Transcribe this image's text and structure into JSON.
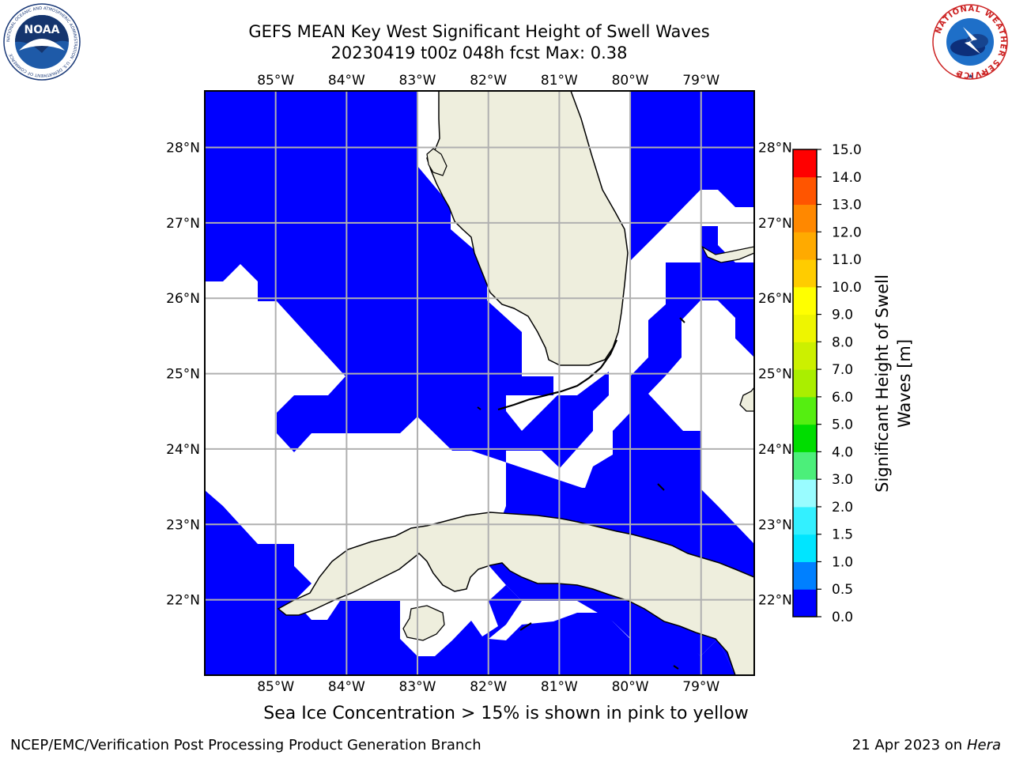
{
  "title": {
    "line1": "GEFS MEAN Key West Significant Height of Swell Waves",
    "line2": "20230419 t00z 048h fcst   Max: 0.38"
  },
  "map": {
    "lon_labels": [
      "85°W",
      "84°W",
      "83°W",
      "82°W",
      "81°W",
      "80°W",
      "79°W"
    ],
    "lat_labels": [
      "28°N",
      "27°N",
      "26°N",
      "25°N",
      "24°N",
      "23°N",
      "22°N"
    ],
    "lon_range": [
      -86.0,
      -78.25
    ],
    "lat_range": [
      21.0,
      28.75
    ],
    "land_color": "#eeeedd",
    "ocean_fill_color": "#0000ff",
    "grid_color": "#b0b0b0"
  },
  "colorbar": {
    "label": "Significant Height of Swell Waves [m]",
    "label_line1": "Significant Height of Swell",
    "label_line2": "Waves [m]",
    "ticks": [
      "15.0",
      "14.0",
      "13.0",
      "12.0",
      "11.0",
      "10.0",
      "9.0",
      "8.0",
      "7.0",
      "6.0",
      "5.0",
      "4.0",
      "3.0",
      "2.0",
      "1.5",
      "1.0",
      "0.5",
      "0.0"
    ],
    "bins": [
      {
        "from": 0.0,
        "to": 0.5,
        "color": "#0000ff"
      },
      {
        "from": 0.5,
        "to": 1.0,
        "color": "#0080ff"
      },
      {
        "from": 1.0,
        "to": 1.5,
        "color": "#00e5ff"
      },
      {
        "from": 1.5,
        "to": 2.0,
        "color": "#33f0ff"
      },
      {
        "from": 2.0,
        "to": 3.0,
        "color": "#99fcff"
      },
      {
        "from": 3.0,
        "to": 4.0,
        "color": "#4cef7a"
      },
      {
        "from": 4.0,
        "to": 5.0,
        "color": "#00dd00"
      },
      {
        "from": 5.0,
        "to": 6.0,
        "color": "#55ee11"
      },
      {
        "from": 6.0,
        "to": 7.0,
        "color": "#aaee00"
      },
      {
        "from": 7.0,
        "to": 8.0,
        "color": "#ccf000"
      },
      {
        "from": 8.0,
        "to": 9.0,
        "color": "#eef500"
      },
      {
        "from": 9.0,
        "to": 10.0,
        "color": "#ffff00"
      },
      {
        "from": 10.0,
        "to": 11.0,
        "color": "#ffcc00"
      },
      {
        "from": 11.0,
        "to": 12.0,
        "color": "#ffaa00"
      },
      {
        "from": 12.0,
        "to": 13.0,
        "color": "#ff8800"
      },
      {
        "from": 13.0,
        "to": 14.0,
        "color": "#ff5500"
      },
      {
        "from": 14.0,
        "to": 15.0,
        "color": "#ff0000"
      }
    ]
  },
  "logos": {
    "left_text": "NOAA",
    "left_ring_text": "NATIONAL OCEANIC AND ATMOSPHERIC ADMINISTRATION · U.S. DEPARTMENT OF COMMERCE",
    "right_ring_text": "NATIONAL WEATHER SERVICE"
  },
  "footer": {
    "ice_note": "Sea Ice Concentration > 15% is shown in pink to yellow",
    "credit_left": "NCEP/EMC/Verification Post Processing Product Generation Branch",
    "credit_right_prefix": "21 Apr 2023 on ",
    "credit_right_host": "Hera"
  }
}
